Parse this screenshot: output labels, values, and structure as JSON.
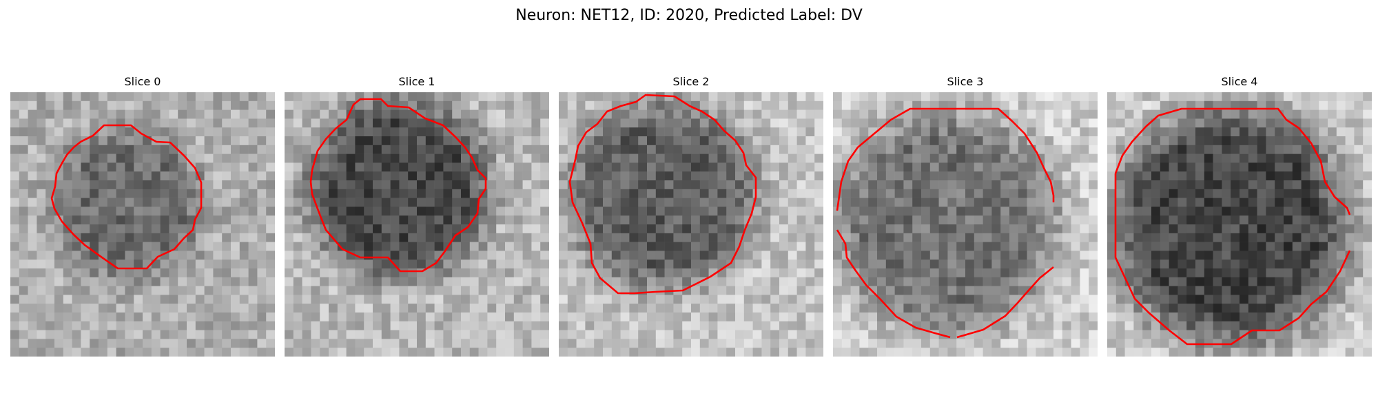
{
  "title": "Neuron: NET12, ID: 2020, Predicted Label: DV",
  "contour_color": "#ff0000",
  "panels": [
    {
      "label": "Slice 0"
    },
    {
      "label": "Slice 1"
    },
    {
      "label": "Slice 2"
    },
    {
      "label": "Slice 3"
    },
    {
      "label": "Slice 4"
    }
  ]
}
